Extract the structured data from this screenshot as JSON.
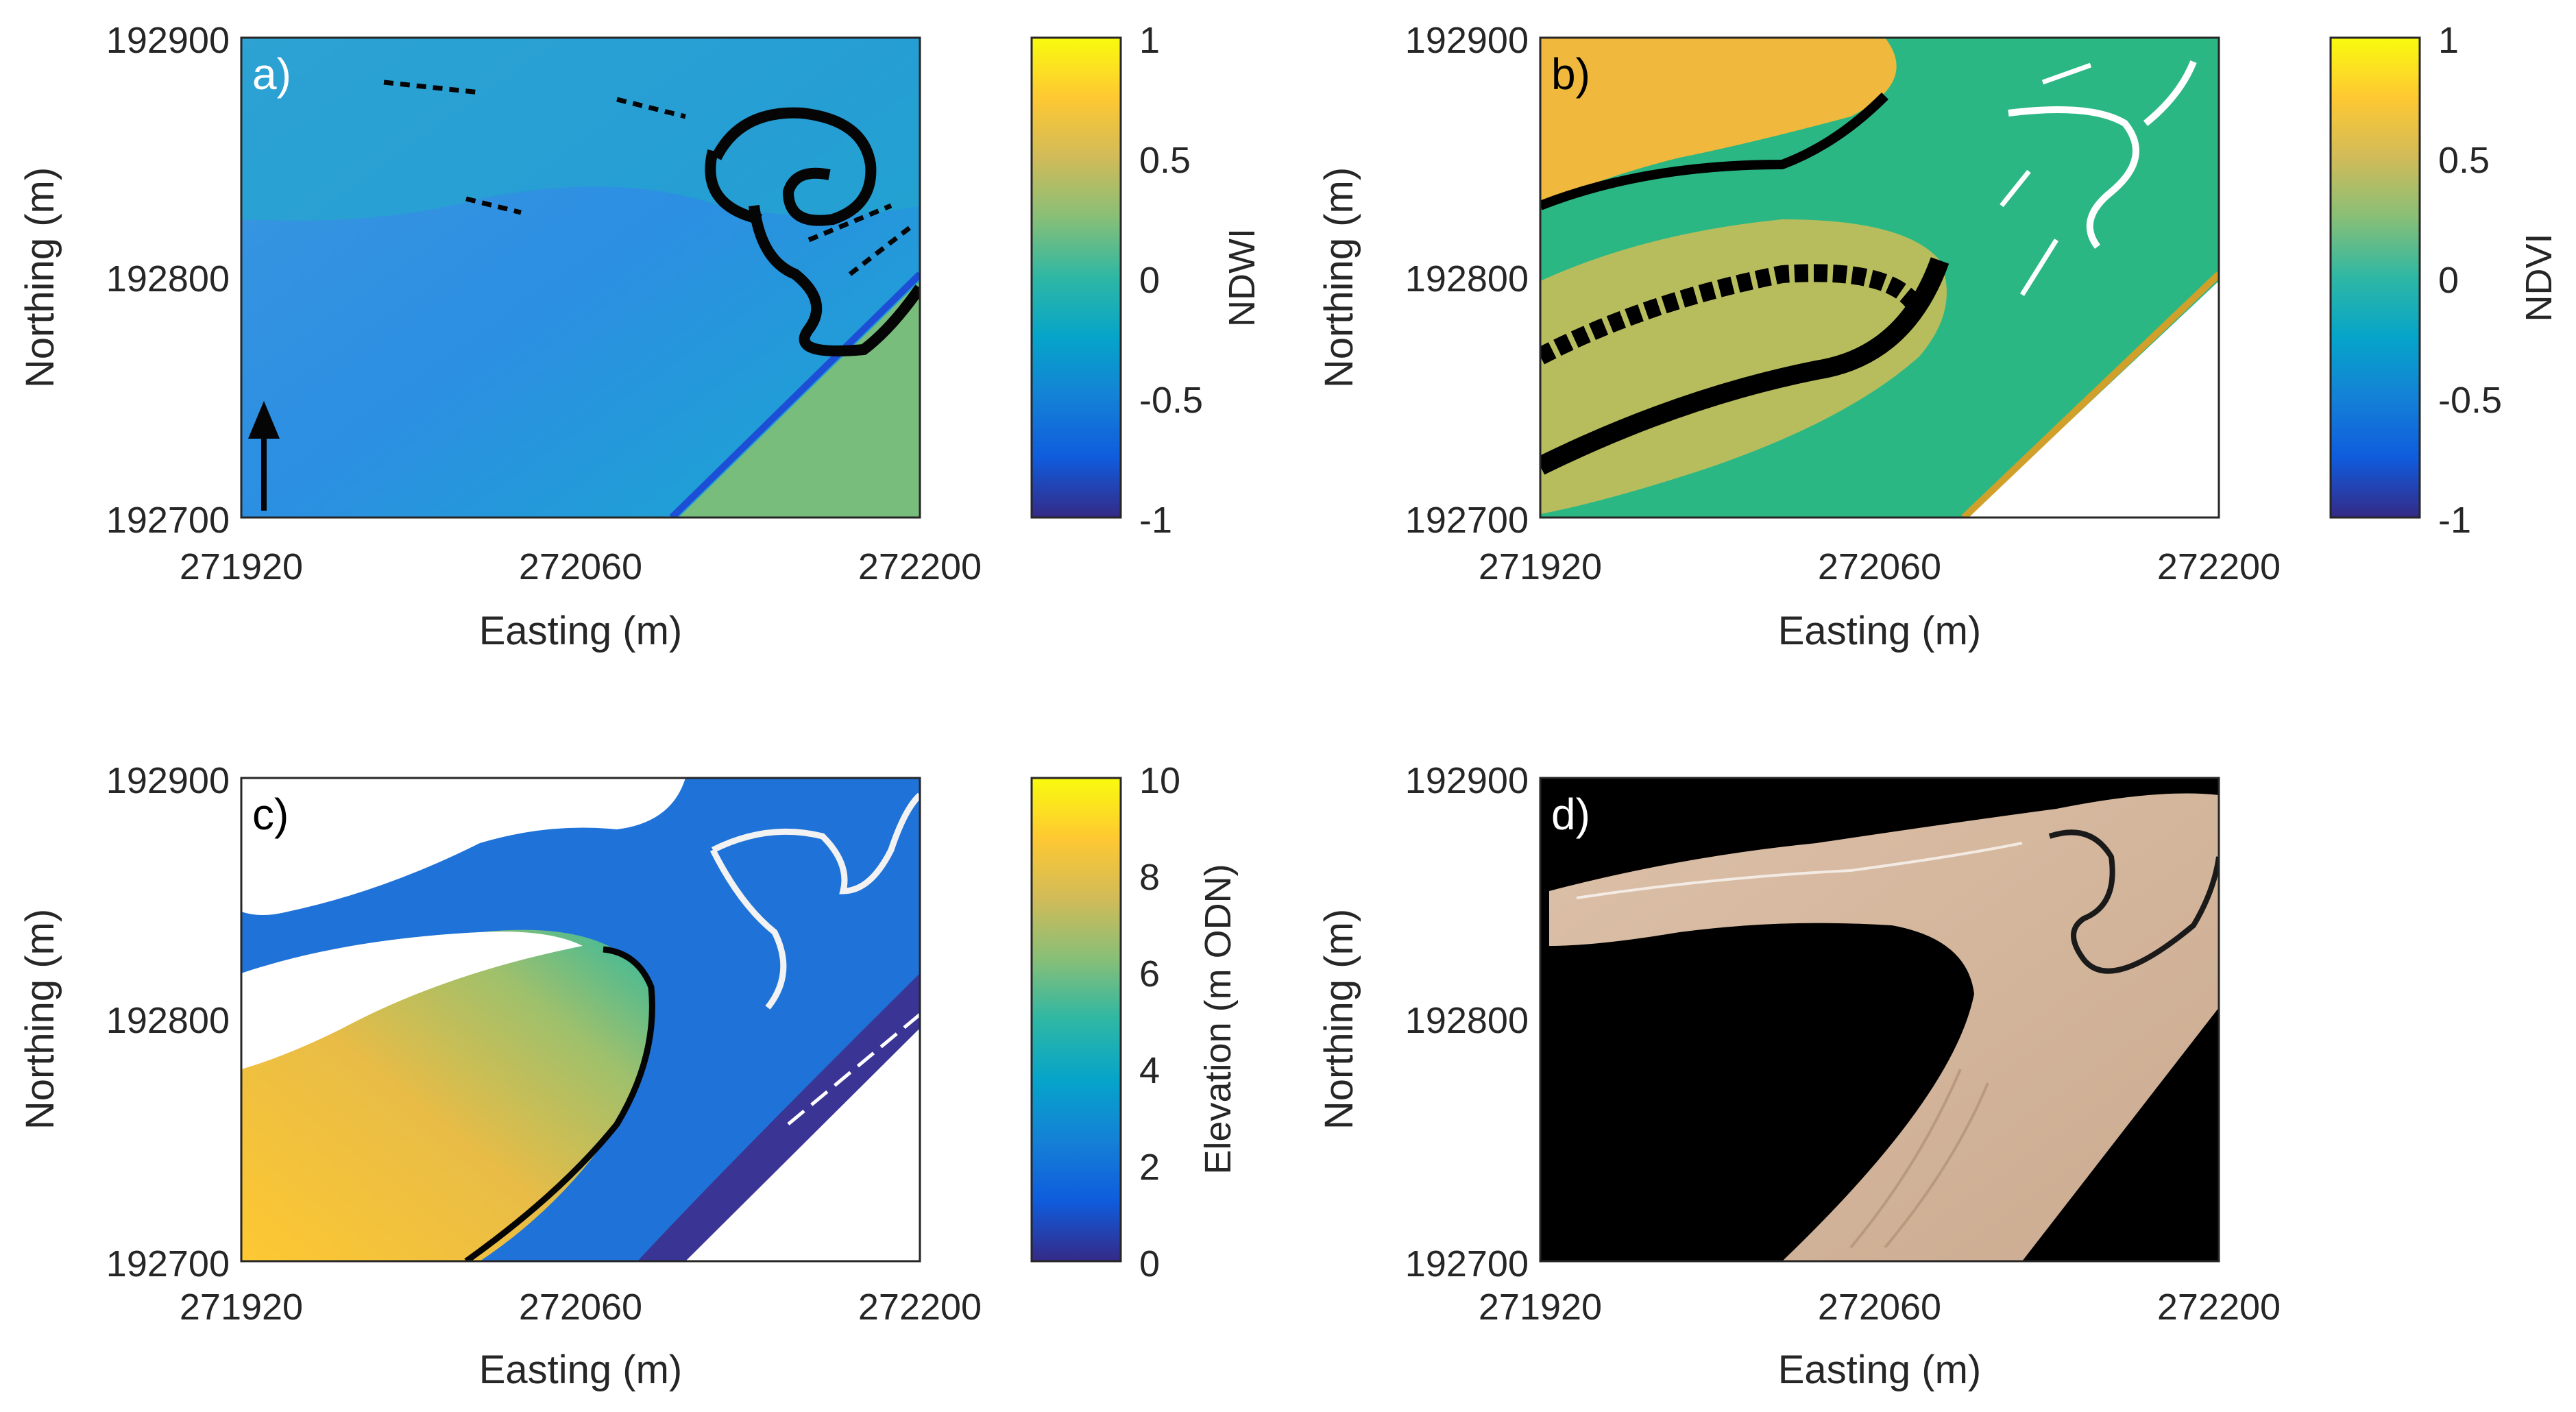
{
  "colors": {
    "parula": [
      "#352a87",
      "#0f5cdd",
      "#1481d6",
      "#06a4ca",
      "#2eb7a4",
      "#87bf77",
      "#d1bb59",
      "#fec832",
      "#f9fb0e"
    ],
    "mask": "#000000",
    "nodata": "#ffffff"
  },
  "chart_data": [
    {
      "type": "heatmap",
      "panel_label": "a)",
      "title": "",
      "xlabel": "Easting (m)",
      "ylabel": "Northing (m)",
      "xlim": [
        271920,
        272200
      ],
      "ylim": [
        192700,
        192900
      ],
      "xticks": [
        "271920",
        "272060",
        "272200"
      ],
      "yticks": [
        "192700",
        "192800",
        "192900"
      ],
      "colorbar": {
        "label": "NDWI",
        "range": [
          -1,
          1
        ],
        "ticks": [
          "-1",
          "-0.5",
          "0",
          "0.5",
          "1"
        ]
      },
      "north_arrow": true
    },
    {
      "type": "heatmap",
      "panel_label": "b)",
      "title": "",
      "xlabel": "Easting (m)",
      "ylabel": "Northing (m)",
      "xlim": [
        271920,
        272200
      ],
      "ylim": [
        192700,
        192900
      ],
      "xticks": [
        "271920",
        "272060",
        "272200"
      ],
      "yticks": [
        "192700",
        "192800",
        "192900"
      ],
      "colorbar": {
        "label": "NDVI",
        "range": [
          -1,
          1
        ],
        "ticks": [
          "-1",
          "-0.5",
          "0",
          "0.5",
          "1"
        ]
      }
    },
    {
      "type": "heatmap",
      "panel_label": "c)",
      "title": "",
      "xlabel": "Easting (m)",
      "ylabel": "Northing (m)",
      "xlim": [
        271920,
        272200
      ],
      "ylim": [
        192700,
        192900
      ],
      "xticks": [
        "271920",
        "272060",
        "272200"
      ],
      "yticks": [
        "192700",
        "192800",
        "192900"
      ],
      "colorbar": {
        "label": "Elevation (m ODN)",
        "range": [
          0,
          10
        ],
        "ticks": [
          "0",
          "2",
          "4",
          "6",
          "8",
          "10"
        ]
      }
    },
    {
      "type": "heatmap",
      "panel_label": "d)",
      "title": "",
      "xlabel": "Easting (m)",
      "ylabel": "Northing (m)",
      "xlim": [
        271920,
        272200
      ],
      "ylim": [
        192700,
        192900
      ],
      "xticks": [
        "271920",
        "272060",
        "272200"
      ],
      "yticks": [
        "192700",
        "192800",
        "192900"
      ],
      "colorbar": null
    }
  ]
}
